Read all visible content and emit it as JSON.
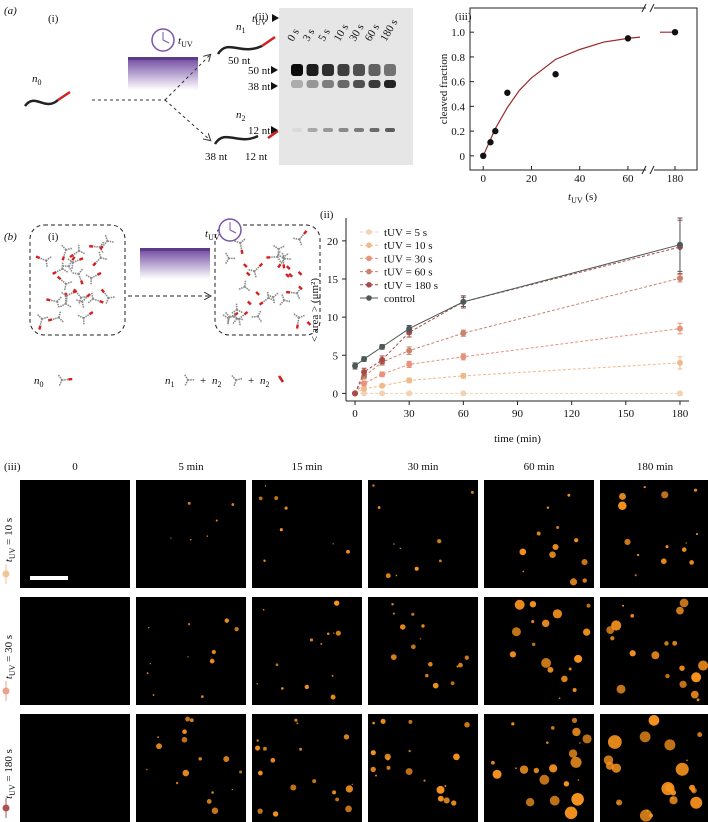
{
  "figure": {
    "panel_labels": {
      "a": "(a)",
      "a_i": "(i)",
      "a_ii": "(ii)",
      "a_iii": "(iii)",
      "b": "(b)",
      "b_i": "(i)",
      "b_ii": "(ii)",
      "c": "(iii)"
    },
    "a_i": {
      "t_uv": {
        "base": "t",
        "sub": "UV"
      },
      "n0": {
        "base": "n",
        "sub": "0"
      },
      "n1": {
        "base": "n",
        "sub": "1"
      },
      "n2": {
        "base": "n",
        "sub": "2"
      },
      "len_50": "50 nt",
      "len_38": "38 nt",
      "len_12": "12 nt"
    },
    "gel": {
      "t_uv": {
        "base": "t",
        "sub": "UV"
      },
      "lanes": [
        "0 s",
        "3 s",
        "5 s",
        "10 s",
        "30 s",
        "60 s",
        "180 s"
      ],
      "bands": [
        "50 nt",
        "38 nt",
        "12 nt"
      ]
    },
    "b_i": {
      "t_uv": {
        "base": "t",
        "sub": "UV"
      },
      "n0": {
        "base": "n",
        "sub": "0"
      },
      "n1": {
        "base": "n",
        "sub": "1"
      },
      "n2": {
        "base": "n",
        "sub": "2"
      },
      "plus": "+"
    },
    "micrographs": {
      "columns": [
        "0",
        "5 min",
        "15 min",
        "30 min",
        "60 min",
        "180 min"
      ],
      "rows": [
        {
          "label": {
            "base": "t",
            "sub": "UV",
            "rest": " = 10 s"
          },
          "color": "#f2c49a"
        },
        {
          "label": {
            "base": "t",
            "sub": "UV",
            "rest": " = 30 s"
          },
          "color": "#eda08a"
        },
        {
          "label": {
            "base": "t",
            "sub": "UV",
            "rest": " = 180 s"
          },
          "color": "#a85454"
        }
      ]
    }
  },
  "chart_data": [
    {
      "type": "scatter",
      "ylabel": "cleaved fraction",
      "xlabel": {
        "base": "t",
        "sub": "UV",
        "unit": " (s)"
      },
      "x": [
        0,
        3,
        5,
        10,
        30,
        60,
        180
      ],
      "values": [
        0,
        0.11,
        0.2,
        0.51,
        0.66,
        0.95,
        1.0
      ],
      "color": "#111111",
      "fit": {
        "x": [
          0,
          5,
          10,
          15,
          20,
          30,
          40,
          50,
          60,
          65,
          170,
          175,
          180
        ],
        "values": [
          0,
          0.22,
          0.39,
          0.53,
          0.63,
          0.78,
          0.86,
          0.92,
          0.95,
          0.96,
          null,
          1.0,
          1.0
        ],
        "color": "#9b2a2a"
      },
      "xlim": [
        -3,
        185
      ],
      "xbreak": [
        65,
        175
      ],
      "ylim": [
        -0.05,
        1.05
      ],
      "xticks": [
        0,
        20,
        40,
        60,
        180
      ],
      "yticks": [
        0,
        0.2,
        0.4,
        0.6,
        0.8,
        {
          "value": 1,
          "label": "1.0"
        }
      ],
      "xlabel_color": "#7b3fa0"
    },
    {
      "type": "line",
      "xlabel": "time (min)",
      "ylabel": "< area > (μm²)",
      "x": [
        0,
        5,
        15,
        30,
        60,
        180
      ],
      "series": [
        {
          "name": "tUV = 5 s",
          "color": "#f3d2b4",
          "values": [
            0,
            0,
            0,
            0,
            0,
            0
          ],
          "errors": [
            0.1,
            0.1,
            0.1,
            0.1,
            0.1,
            0.2
          ],
          "dashed": true
        },
        {
          "name": "tUV = 10 s",
          "color": "#f0b98a",
          "values": [
            0,
            0.6,
            1.0,
            1.7,
            2.3,
            4.0
          ],
          "errors": [
            0.1,
            0.2,
            0.2,
            0.3,
            0.3,
            0.8
          ],
          "dashed": true
        },
        {
          "name": "tUV = 30 s",
          "color": "#e9927a",
          "values": [
            0,
            1.3,
            2.5,
            3.8,
            4.8,
            8.5
          ],
          "errors": [
            0.1,
            0.3,
            0.3,
            0.4,
            0.4,
            0.7
          ],
          "dashed": true
        },
        {
          "name": "tUV = 60 s",
          "color": "#c8846c",
          "values": [
            0,
            2.2,
            4.1,
            5.6,
            7.9,
            15.1
          ],
          "errors": [
            0.1,
            0.3,
            0.4,
            0.5,
            0.4,
            0.5
          ],
          "dashed": true
        },
        {
          "name": "tUV = 180 s",
          "color": "#a84a4a",
          "values": [
            0,
            2.8,
            4.4,
            8.0,
            12.0,
            19.2
          ],
          "errors": [
            0.1,
            0.5,
            0.5,
            0.6,
            0.8,
            3.5
          ],
          "dashed": true
        },
        {
          "name": "control",
          "color": "#4d5a58",
          "values": [
            3.6,
            4.5,
            6.1,
            8.5,
            12.0,
            19.5
          ],
          "errors": [
            0.4,
            0.3,
            0.3,
            0.4,
            0.6,
            3.5
          ],
          "dashed": false
        }
      ],
      "xlim": [
        -5,
        185
      ],
      "ylim": [
        -1,
        23
      ],
      "xticks": [
        0,
        30,
        60,
        90,
        120,
        150,
        180
      ],
      "yticks": [
        0,
        5,
        10,
        15,
        20
      ],
      "legend": "upper-left"
    }
  ]
}
